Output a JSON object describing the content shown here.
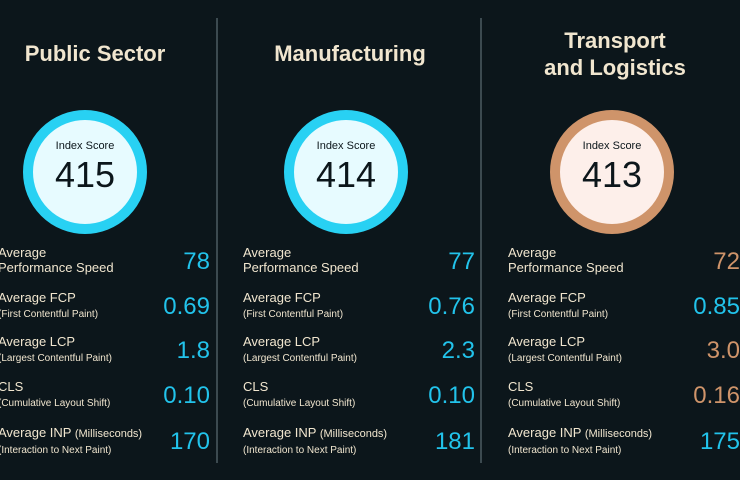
{
  "columns": [
    {
      "title_lines": [
        "Public Sector",
        ""
      ],
      "score_label": "Index Score",
      "score": "415",
      "metrics": [
        {
          "label": "Average",
          "sub": "Performance Speed",
          "value": "78"
        },
        {
          "label": "Average FCP",
          "sub": "(First Contentful Paint)",
          "value": "0.69"
        },
        {
          "label": "Average LCP",
          "sub": "(Largest Contentful Paint)",
          "value": "1.8"
        },
        {
          "label": "CLS",
          "sub": "(Cumulative Layout Shift)",
          "value": "0.10"
        },
        {
          "label": "Average INP",
          "label_suffix": "(Milliseconds)",
          "sub": "(Interaction to Next Paint)",
          "value": "170"
        }
      ]
    },
    {
      "title_lines": [
        "Manufacturing",
        ""
      ],
      "score_label": "Index Score",
      "score": "414",
      "metrics": [
        {
          "label": "Average",
          "sub": "Performance Speed",
          "value": "77"
        },
        {
          "label": "Average FCP",
          "sub": "(First Contentful Paint)",
          "value": "0.76"
        },
        {
          "label": "Average LCP",
          "sub": "(Largest Contentful Paint)",
          "value": "2.3"
        },
        {
          "label": "CLS",
          "sub": "(Cumulative Layout Shift)",
          "value": "0.10"
        },
        {
          "label": "Average INP",
          "label_suffix": "(Milliseconds)",
          "sub": "(Interaction to Next Paint)",
          "value": "181"
        }
      ]
    },
    {
      "title_lines": [
        "Transport",
        "and Logistics"
      ],
      "score_label": "Index Score",
      "score": "413",
      "metrics": [
        {
          "label": "Average",
          "sub": "Performance Speed",
          "value": "72"
        },
        {
          "label": "Average FCP",
          "sub": "(First Contentful Paint)",
          "value": "0.85"
        },
        {
          "label": "Average LCP",
          "sub": "(Largest Contentful Paint)",
          "value": "3.0"
        },
        {
          "label": "CLS",
          "sub": "(Cumulative Layout Shift)",
          "value": "0.16"
        },
        {
          "label": "Average INP",
          "label_suffix": "(Milliseconds)",
          "sub": "(Interaction to Next Paint)",
          "value": "175"
        }
      ]
    }
  ],
  "colors": {
    "background": "#0c161b",
    "accent_cyan": "#28d1f3",
    "accent_orange": "#cf946a",
    "text_cream": "#f1e6cf"
  }
}
